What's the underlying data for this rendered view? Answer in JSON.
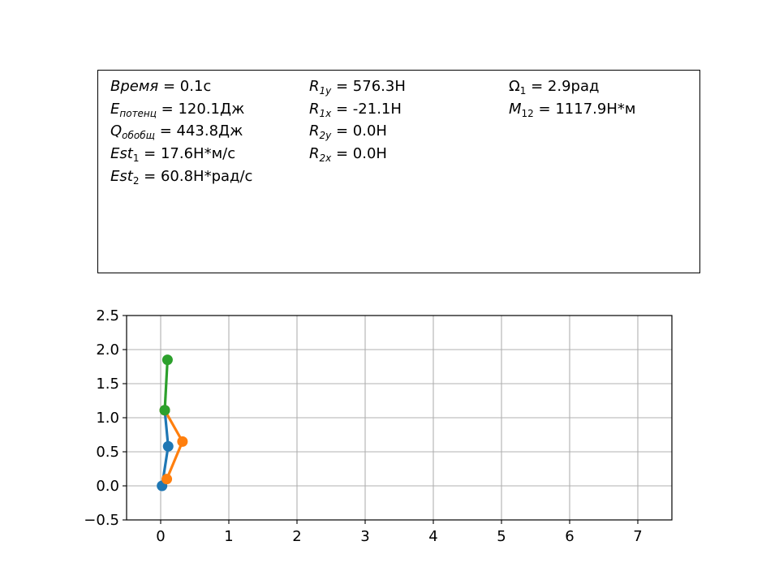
{
  "info": {
    "col1": [
      {
        "var": "Время",
        "sub": "",
        "sub_italic": false,
        "text": " = 0.1с"
      },
      {
        "var": "E",
        "sub": "потенц",
        "sub_italic": true,
        "text": " = 120.1Дж"
      },
      {
        "var": "Q",
        "sub": "обобщ",
        "sub_italic": true,
        "text": " = 443.8Дж"
      },
      {
        "var": "Est",
        "sub": "1",
        "sub_italic": false,
        "text": " = 17.6Н*м/с"
      },
      {
        "var": "Est",
        "sub": "2",
        "sub_italic": false,
        "text": " = 60.8Н*рад/с"
      }
    ],
    "col2": [
      {
        "var": "R",
        "sub": "1y",
        "sub_italic": true,
        "text": " = 576.3Н"
      },
      {
        "var": "R",
        "sub": "1x",
        "sub_italic": true,
        "text": " = -21.1Н"
      },
      {
        "var": "R",
        "sub": "2y",
        "sub_italic": true,
        "text": " = 0.0Н"
      },
      {
        "var": "R",
        "sub": "2x",
        "sub_italic": true,
        "text": " = 0.0Н"
      }
    ],
    "col3": [
      {
        "var": "Ω",
        "sub": "1",
        "sub_italic": false,
        "text": " = 2.9рад",
        "upright": true
      },
      {
        "var": "M",
        "sub": "12",
        "sub_italic": false,
        "text": " = 1117.9Н*м"
      }
    ]
  },
  "chart_data": {
    "type": "line",
    "xlim": [
      -0.5,
      7.5
    ],
    "ylim": [
      -0.5,
      2.5
    ],
    "xticks": [
      "0",
      "1",
      "2",
      "3",
      "4",
      "5",
      "6",
      "7"
    ],
    "xtick_values": [
      0,
      1,
      2,
      3,
      4,
      5,
      6,
      7
    ],
    "yticks": [
      "−0.5",
      "0.0",
      "0.5",
      "1.0",
      "1.5",
      "2.0",
      "2.5"
    ],
    "ytick_values": [
      -0.5,
      0.0,
      0.5,
      1.0,
      1.5,
      2.0,
      2.5
    ],
    "grid": true,
    "series": [
      {
        "color": "#1f77b4",
        "x": [
          0.02,
          0.11,
          0.06
        ],
        "y": [
          0.0,
          0.58,
          1.11
        ]
      },
      {
        "color": "#ff7f0e",
        "x": [
          0.09,
          0.32,
          0.06
        ],
        "y": [
          0.1,
          0.65,
          1.11
        ]
      },
      {
        "color": "#2ca02c",
        "x": [
          0.06,
          0.1
        ],
        "y": [
          1.11,
          1.85
        ]
      }
    ]
  }
}
